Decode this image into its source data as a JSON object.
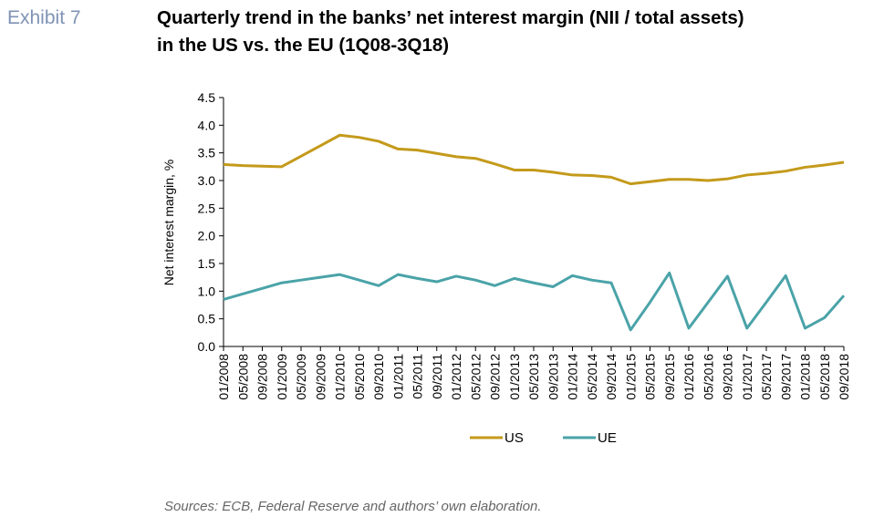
{
  "chart_data": {
    "type": "line",
    "exhibit": "Exhibit 7",
    "title": [
      "Quarterly trend in the banks’ net interest margin (NII / total assets)",
      "in the US vs. the EU (1Q08-3Q18)"
    ],
    "y_label": "Net interest margin, %",
    "source": "Sources: ECB, Federal Reserve and authors’ own elaboration.",
    "categories": [
      "01/2008",
      "05/2008",
      "09/2008",
      "01/2009",
      "05/2009",
      "09/2009",
      "01/2010",
      "05/2010",
      "09/2010",
      "01/2011",
      "05/2011",
      "09/2011",
      "01/2012",
      "05/2012",
      "09/2012",
      "01/2013",
      "05/2013",
      "09/2013",
      "01/2014",
      "05/2014",
      "09/2014",
      "01/2015",
      "05/2015",
      "09/2015",
      "01/2016",
      "05/2016",
      "09/2016",
      "01/2017",
      "05/2017",
      "09/2017",
      "01/2018",
      "05/2018",
      "09/2018"
    ],
    "series": [
      {
        "name": "US",
        "color": "#c49a1b",
        "values": [
          3.29,
          3.27,
          3.26,
          3.25,
          3.44,
          3.63,
          3.82,
          3.78,
          3.71,
          3.57,
          3.55,
          3.49,
          3.43,
          3.4,
          3.3,
          3.19,
          3.19,
          3.15,
          3.1,
          3.09,
          3.06,
          2.94,
          2.98,
          3.02,
          3.02,
          3.0,
          3.03,
          3.1,
          3.13,
          3.17,
          3.24,
          3.28,
          3.33
        ]
      },
      {
        "name": "UE",
        "color": "#4aa3a8",
        "values": [
          0.85,
          0.95,
          1.05,
          1.15,
          1.2,
          1.25,
          1.3,
          1.2,
          1.1,
          1.3,
          1.23,
          1.17,
          1.27,
          1.2,
          1.1,
          1.23,
          1.15,
          1.08,
          1.28,
          1.2,
          1.15,
          0.3,
          0.8,
          1.33,
          0.33,
          0.8,
          1.27,
          0.33,
          0.8,
          1.28,
          0.33,
          0.52,
          0.92
        ]
      }
    ],
    "ylim": [
      0,
      4.5
    ],
    "yticks": [
      {
        "value": 0,
        "label": "0.0"
      },
      {
        "value": 0.5,
        "label": "0.5"
      },
      {
        "value": 1,
        "label": "1.0"
      },
      {
        "value": 1.5,
        "label": "1.5"
      },
      {
        "value": 2,
        "label": "2.0"
      },
      {
        "value": 2.5,
        "label": "2.5"
      },
      {
        "value": 3,
        "label": "3.0"
      },
      {
        "value": 3.5,
        "label": "3.5"
      },
      {
        "value": 4,
        "label": "4.0"
      },
      {
        "value": 4.5,
        "label": "4.5"
      }
    ],
    "legend": "bottom"
  }
}
